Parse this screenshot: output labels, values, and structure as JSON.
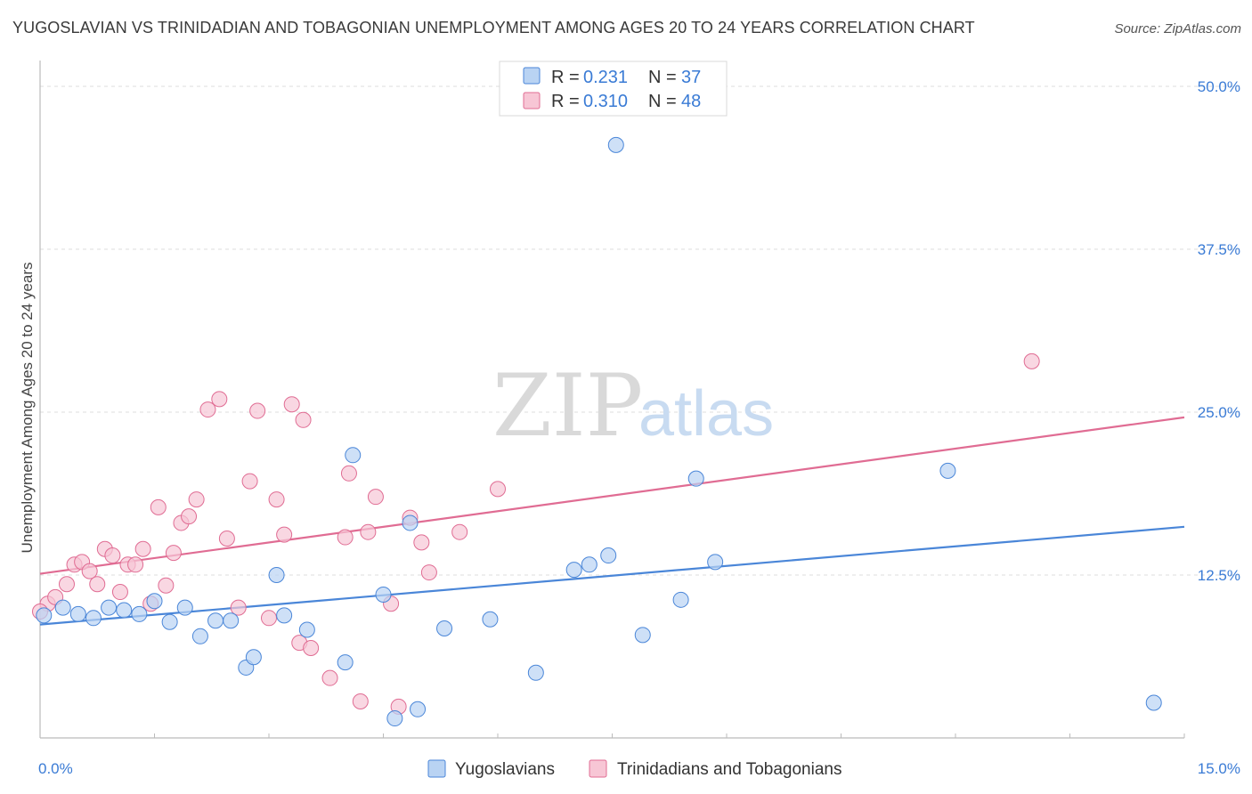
{
  "title": "YUGOSLAVIAN VS TRINIDADIAN AND TOBAGONIAN UNEMPLOYMENT AMONG AGES 20 TO 24 YEARS CORRELATION CHART",
  "source": "Source: ZipAtlas.com",
  "watermark": {
    "zip": "ZIP",
    "atlas": "atlas"
  },
  "legend_top": {
    "rows": [
      {
        "r_label": "R =",
        "r_value": "0.231",
        "n_label": "N =",
        "n_value": "37"
      },
      {
        "r_label": "R =",
        "r_value": "0.310",
        "n_label": "N =",
        "n_value": "48"
      }
    ]
  },
  "chart_data": {
    "type": "scatter",
    "title": "YUGOSLAVIAN VS TRINIDADIAN AND TOBAGONIAN UNEMPLOYMENT AMONG AGES 20 TO 24 YEARS CORRELATION CHART",
    "xlabel": "",
    "ylabel": "Unemployment Among Ages 20 to 24 years",
    "xlim": [
      0,
      15
    ],
    "ylim": [
      0,
      50
    ],
    "x_tick_labels": [
      "0.0%",
      "15.0%"
    ],
    "y_ticks": [
      12.5,
      25.0,
      37.5,
      50.0
    ],
    "y_tick_labels": [
      "12.5%",
      "25.0%",
      "37.5%",
      "50.0%"
    ],
    "grid": true,
    "legend_position": "top-center",
    "series": [
      {
        "name": "Yugoslavians",
        "color": "#4a86d8",
        "fill": "#b9d3f3",
        "r": 0.231,
        "n": 37,
        "trend": {
          "x": [
            0,
            15
          ],
          "y": [
            8.7,
            16.2
          ]
        },
        "points": [
          [
            0.05,
            9.4
          ],
          [
            0.3,
            10.0
          ],
          [
            0.5,
            9.5
          ],
          [
            0.7,
            9.2
          ],
          [
            0.9,
            10.0
          ],
          [
            1.1,
            9.8
          ],
          [
            1.3,
            9.5
          ],
          [
            1.5,
            10.5
          ],
          [
            1.7,
            8.9
          ],
          [
            1.9,
            10.0
          ],
          [
            2.1,
            7.8
          ],
          [
            2.3,
            9.0
          ],
          [
            2.5,
            9.0
          ],
          [
            2.7,
            5.4
          ],
          [
            2.8,
            6.2
          ],
          [
            3.1,
            12.5
          ],
          [
            3.2,
            9.4
          ],
          [
            3.5,
            8.3
          ],
          [
            4.0,
            5.8
          ],
          [
            4.1,
            21.7
          ],
          [
            4.5,
            11.0
          ],
          [
            4.65,
            1.5
          ],
          [
            4.85,
            16.5
          ],
          [
            4.95,
            2.2
          ],
          [
            5.3,
            8.4
          ],
          [
            5.9,
            9.1
          ],
          [
            6.5,
            5.0
          ],
          [
            7.0,
            12.9
          ],
          [
            7.2,
            13.3
          ],
          [
            7.45,
            14.0
          ],
          [
            7.55,
            45.5
          ],
          [
            7.9,
            7.9
          ],
          [
            8.4,
            10.6
          ],
          [
            8.6,
            19.9
          ],
          [
            8.85,
            13.5
          ],
          [
            11.9,
            20.5
          ],
          [
            14.6,
            2.7
          ]
        ]
      },
      {
        "name": "Trinidadians and Tobagonians",
        "color": "#e06c93",
        "fill": "#f7c6d5",
        "r": 0.31,
        "n": 48,
        "trend": {
          "x": [
            0,
            15
          ],
          "y": [
            12.6,
            24.6
          ]
        },
        "points": [
          [
            0.1,
            10.3
          ],
          [
            0.2,
            10.8
          ],
          [
            0.35,
            11.8
          ],
          [
            0.45,
            13.3
          ],
          [
            0.55,
            13.5
          ],
          [
            0.65,
            12.8
          ],
          [
            0.75,
            11.8
          ],
          [
            0.85,
            14.5
          ],
          [
            0.95,
            14.0
          ],
          [
            1.05,
            11.2
          ],
          [
            1.15,
            13.3
          ],
          [
            1.25,
            13.3
          ],
          [
            1.35,
            14.5
          ],
          [
            1.45,
            10.3
          ],
          [
            1.55,
            17.7
          ],
          [
            1.65,
            11.7
          ],
          [
            1.75,
            14.2
          ],
          [
            1.85,
            16.5
          ],
          [
            1.95,
            17.0
          ],
          [
            2.05,
            18.3
          ],
          [
            2.2,
            25.2
          ],
          [
            2.35,
            26.0
          ],
          [
            2.45,
            15.3
          ],
          [
            2.6,
            10.0
          ],
          [
            2.75,
            19.7
          ],
          [
            2.85,
            25.1
          ],
          [
            3.0,
            9.2
          ],
          [
            3.1,
            18.3
          ],
          [
            3.2,
            15.6
          ],
          [
            3.3,
            25.6
          ],
          [
            3.4,
            7.3
          ],
          [
            3.45,
            24.4
          ],
          [
            3.55,
            6.9
          ],
          [
            3.8,
            4.6
          ],
          [
            4.0,
            15.4
          ],
          [
            4.05,
            20.3
          ],
          [
            4.2,
            2.8
          ],
          [
            4.3,
            15.8
          ],
          [
            4.4,
            18.5
          ],
          [
            4.6,
            10.3
          ],
          [
            4.7,
            2.4
          ],
          [
            4.85,
            16.9
          ],
          [
            5.0,
            15.0
          ],
          [
            5.1,
            12.7
          ],
          [
            5.5,
            15.8
          ],
          [
            6.0,
            19.1
          ],
          [
            13.0,
            28.9
          ],
          [
            0.0,
            9.7
          ]
        ]
      }
    ]
  },
  "bottom_legend": {
    "items": [
      {
        "label": "Yugoslavians"
      },
      {
        "label": "Trinidadians and Tobagonians"
      }
    ]
  }
}
